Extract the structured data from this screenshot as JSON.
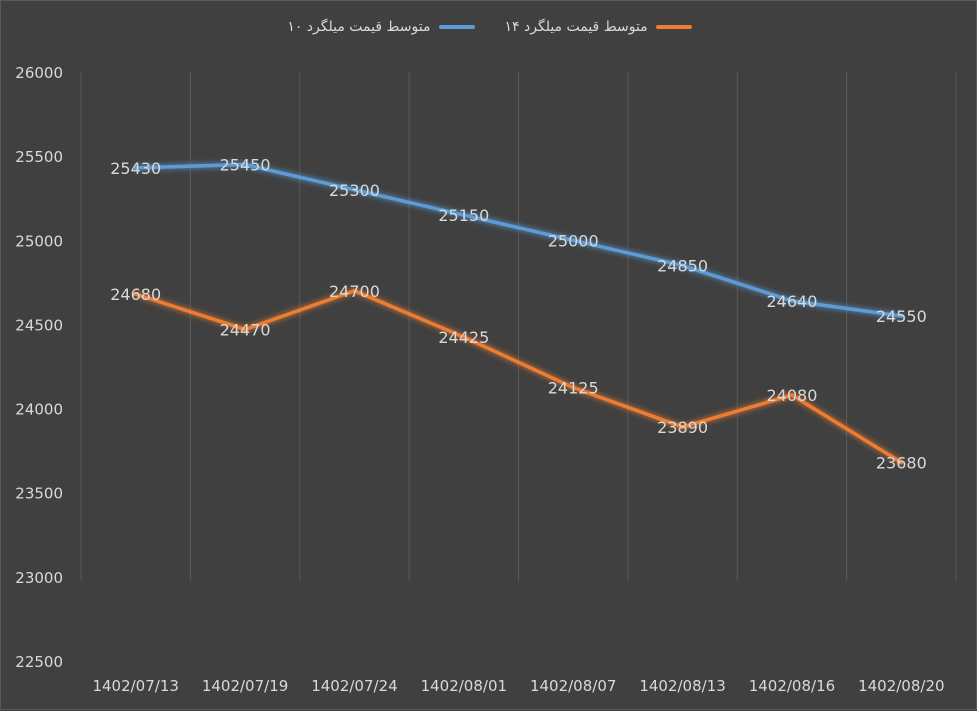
{
  "chart_data": {
    "type": "line",
    "categories": [
      "1402/07/13",
      "1402/07/19",
      "1402/07/24",
      "1402/08/01",
      "1402/08/07",
      "1402/08/13",
      "1402/08/16",
      "1402/08/20"
    ],
    "series": [
      {
        "name": "متوسط قیمت میلگرد ۱۰",
        "color": "#5b9bd5",
        "values": [
          25430,
          25450,
          25300,
          25150,
          25000,
          24850,
          24640,
          24550
        ]
      },
      {
        "name": "متوسط قیمت میلگرد ۱۴",
        "color": "#ed7d31",
        "values": [
          24680,
          24470,
          24700,
          24425,
          24125,
          23890,
          24080,
          23680
        ]
      }
    ],
    "ylim": [
      22500,
      26000
    ],
    "yticks": [
      22500,
      23000,
      23500,
      24000,
      24500,
      25000,
      25500,
      26000
    ],
    "legend_position": "top",
    "grid": "vertical"
  }
}
